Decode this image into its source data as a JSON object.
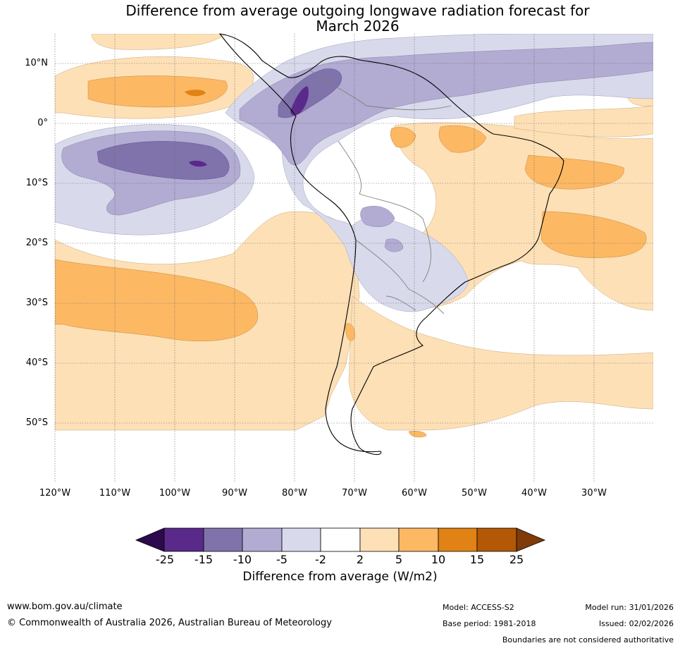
{
  "title_line1": "Difference from average outgoing longwave radiation forecast for",
  "title_line2": "March 2026",
  "lat_labels": [
    "10°N",
    "0°",
    "10°S",
    "20°S",
    "30°S",
    "40°S",
    "50°S"
  ],
  "lon_labels": [
    "120°W",
    "110°W",
    "100°W",
    "90°W",
    "80°W",
    "70°W",
    "60°W",
    "50°W",
    "40°W",
    "30°W"
  ],
  "colorbar": {
    "ticks": [
      "-25",
      "-15",
      "-10",
      "-5",
      "-2",
      "2",
      "5",
      "10",
      "15",
      "25"
    ],
    "colors": [
      "#2d0a4e",
      "#5a2a8a",
      "#8073ac",
      "#b2abd2",
      "#d8daeb",
      "#ffffff",
      "#fee0b6",
      "#fdb863",
      "#e08214",
      "#b35806",
      "#7f3b08"
    ],
    "label": "Difference from average (W/m2)"
  },
  "footer": {
    "website": "www.bom.gov.au/climate",
    "copyright": "© Commonwealth of Australia 2026, Australian Bureau of Meteorology",
    "model": "Model: ACCESS-S2",
    "base_period": "Base period: 1981-2018",
    "model_run": "Model run: 31/01/2026",
    "issued": "Issued: 02/02/2026",
    "disclaimer": "Boundaries are not considered authoritative"
  }
}
